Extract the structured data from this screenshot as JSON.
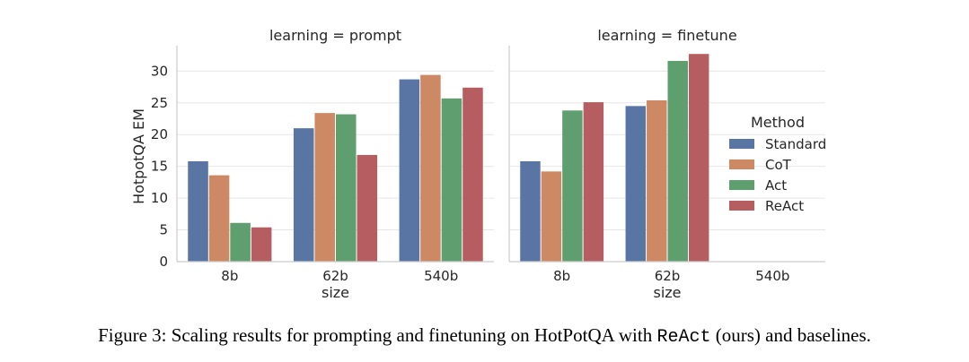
{
  "chart_data": {
    "type": "bar",
    "facet_variable": "learning",
    "panels": [
      {
        "title": "learning = prompt",
        "categories": [
          "8b",
          "62b",
          "540b"
        ],
        "series": [
          {
            "name": "Standard",
            "values": [
              15.8,
              21.0,
              28.7
            ]
          },
          {
            "name": "CoT",
            "values": [
              13.6,
              23.4,
              29.4
            ]
          },
          {
            "name": "Act",
            "values": [
              6.1,
              23.2,
              25.7
            ]
          },
          {
            "name": "ReAct",
            "values": [
              5.4,
              16.8,
              27.4
            ]
          }
        ]
      },
      {
        "title": "learning = finetune",
        "categories": [
          "8b",
          "62b",
          "540b"
        ],
        "series": [
          {
            "name": "Standard",
            "values": [
              15.8,
              24.5,
              null
            ]
          },
          {
            "name": "CoT",
            "values": [
              14.2,
              25.4,
              null
            ]
          },
          {
            "name": "Act",
            "values": [
              23.8,
              31.6,
              null
            ]
          },
          {
            "name": "ReAct",
            "values": [
              25.1,
              32.7,
              null
            ]
          }
        ]
      }
    ],
    "xlabel": "size",
    "ylabel": "HotpotQA EM",
    "ylim": [
      0,
      34
    ],
    "yticks": [
      0,
      5,
      10,
      15,
      20,
      25,
      30
    ],
    "legend": {
      "title": "Method",
      "position": "right",
      "entries": [
        "Standard",
        "CoT",
        "Act",
        "ReAct"
      ]
    },
    "colors": {
      "Standard": "#5875a4",
      "CoT": "#cc8963",
      "Act": "#5f9e6e",
      "ReAct": "#b55d60"
    },
    "grid": true
  },
  "caption": {
    "prefix": "Figure 3: Scaling results for prompting and finetuning on HotPotQA with ",
    "method": "ReAct",
    "suffix": " (ours) and baselines."
  }
}
